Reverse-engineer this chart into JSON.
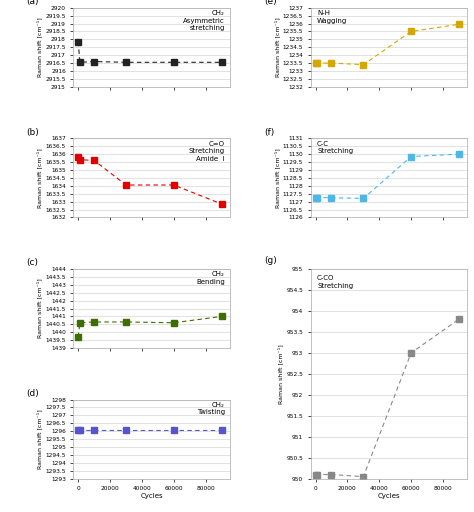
{
  "cycles": [
    0,
    1000,
    10000,
    30000,
    60000,
    90000
  ],
  "panels": {
    "a": {
      "label": "CH₂\nAsymmetric\nstretching",
      "ylim": [
        2915,
        2920
      ],
      "yticks": [
        2915,
        2915.5,
        2916,
        2916.5,
        2917,
        2917.5,
        2918,
        2918.5,
        2919,
        2919.5,
        2920
      ],
      "ytick_labels": [
        "2915",
        "2915.5",
        "2916",
        "2916.5",
        "2917",
        "2917.5",
        "2918",
        "2918.5",
        "2919",
        "2919.5",
        "2920"
      ],
      "values": [
        2917.85,
        2916.55,
        2916.6,
        2916.55,
        2916.55,
        2916.55
      ],
      "color": "#222222",
      "marker": "s"
    },
    "b": {
      "label": "C=O\nStretching\nAmide  I",
      "ylim": [
        1632,
        1637
      ],
      "yticks": [
        1632,
        1632.5,
        1633,
        1633.5,
        1634,
        1634.5,
        1635,
        1635.5,
        1636,
        1636.5,
        1637
      ],
      "ytick_labels": [
        "1632",
        "1632.5",
        "1633",
        "1633.5",
        "1634",
        "1634.5",
        "1635",
        "1635.5",
        "1636",
        "1636.5",
        "1637"
      ],
      "values": [
        1635.85,
        1635.65,
        1635.6,
        1634.05,
        1634.05,
        1632.85
      ],
      "color": "#e00000",
      "marker": "s"
    },
    "c": {
      "label": "CH₂\nBending",
      "ylim": [
        1439,
        1444
      ],
      "yticks": [
        1439,
        1439.5,
        1440,
        1440.5,
        1441,
        1441.5,
        1442,
        1442.5,
        1443,
        1443.5,
        1444
      ],
      "ytick_labels": [
        "1439",
        "1439.5",
        "1440",
        "1440.5",
        "1441",
        "1441.5",
        "1442",
        "1442.5",
        "1443",
        "1443.5",
        "1444"
      ],
      "values": [
        1439.7,
        1440.6,
        1440.65,
        1440.65,
        1440.6,
        1441.0
      ],
      "color": "#3c6e00",
      "marker": "s"
    },
    "d": {
      "label": "CH₂\nTwisting",
      "ylim": [
        1293,
        1298
      ],
      "yticks": [
        1293,
        1293.5,
        1294,
        1294.5,
        1295,
        1295.5,
        1296,
        1296.5,
        1297,
        1297.5,
        1298
      ],
      "ytick_labels": [
        "1293",
        "1293.5",
        "1294",
        "1294.5",
        "1295",
        "1295.5",
        "1296",
        "1296.5",
        "1297",
        "1297.5",
        "1298"
      ],
      "values": [
        1296.1,
        1296.1,
        1296.1,
        1296.1,
        1296.1,
        1296.1
      ],
      "color": "#5555cc",
      "marker": "s"
    },
    "e": {
      "label": "N-H\nWagging",
      "ylim": [
        1232,
        1237
      ],
      "yticks": [
        1232,
        1232.5,
        1233,
        1233.5,
        1234,
        1234.5,
        1235,
        1235.5,
        1236,
        1236.5,
        1237
      ],
      "ytick_labels": [
        "1232",
        "1232.5",
        "1233",
        "1233.5",
        "1234",
        "1234.5",
        "1235",
        "1235.5",
        "1236",
        "1236.5",
        "1237"
      ],
      "values": [
        1233.5,
        1233.5,
        1233.5,
        1233.4,
        1235.5,
        1235.95
      ],
      "color": "#d4a800",
      "marker": "s"
    },
    "f": {
      "label": "C-C\nStretching",
      "ylim": [
        1126,
        1131
      ],
      "yticks": [
        1126,
        1126.5,
        1127,
        1127.5,
        1128,
        1128.5,
        1129,
        1129.5,
        1130,
        1130.5,
        1131
      ],
      "ytick_labels": [
        "1126",
        "1126.5",
        "1127",
        "1127.5",
        "1128",
        "1128.5",
        "1129",
        "1129.5",
        "1130",
        "1130.5",
        "1131"
      ],
      "values": [
        1127.25,
        1127.25,
        1127.25,
        1127.2,
        1129.85,
        1130.0
      ],
      "color": "#4db8e8",
      "marker": "s"
    },
    "g": {
      "label": "C-CO\nStretching",
      "ylim": [
        950,
        955
      ],
      "yticks": [
        950,
        950.5,
        951,
        951.5,
        952,
        952.5,
        953,
        953.5,
        954,
        954.5,
        955
      ],
      "ytick_labels": [
        "950",
        "950.5",
        "951",
        "951.5",
        "952",
        "952.5",
        "953",
        "953.5",
        "954",
        "954.5",
        "955"
      ],
      "values": [
        950.1,
        950.1,
        950.1,
        950.05,
        953.0,
        953.8
      ],
      "color": "#888888",
      "marker": "s"
    }
  },
  "xticks": [
    0,
    20000,
    40000,
    60000,
    80000
  ],
  "xtick_labels": [
    "0",
    "20000",
    "40000",
    "60000",
    "80000"
  ],
  "xlim": [
    -3000,
    95000
  ]
}
